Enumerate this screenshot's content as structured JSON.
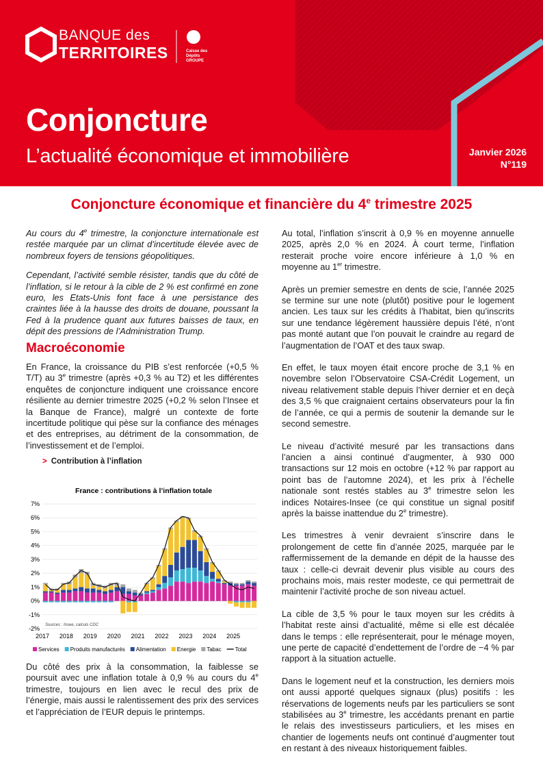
{
  "header": {
    "brand_line1": "BANQUE des",
    "brand_line2": "TERRITOIRES",
    "group": "Caisse des Dépôts GROUPE",
    "title": "Conjoncture",
    "subtitle": "L’actualité économique et immobilière",
    "date": "Janvier 2026",
    "issue": "N°119"
  },
  "heading": [
    "Conjoncture économique et financière du 4",
    "e",
    " trimestre 2025"
  ],
  "left": {
    "intro": [
      [
        "Au cours du 4",
        "e",
        " trimestre, la conjoncture internationale est restée marquée par un climat d’incertitude élevée avec de nombreux foyers de tensions géopolitiques."
      ],
      [
        "Cependant, l’activité semble résister, tandis que du côté de l’inflation, si le retour à la cible de 2 % est confirmé en zone euro, les Etats-Unis font face à une persistance des craintes liée à la hausse des droits de douane, poussant la Fed à la prudence quant aux futures baisses de taux, en dépit des pressions de l’Administration Trump."
      ]
    ],
    "section_title": "Macroéconomie",
    "paragraphs": [
      [
        "En France, la croissance du PIB s’est renforcée (+0,5 % T/T) au 3",
        "e",
        " trimestre (après +0,3 % au T2) et les différentes enquêtes de conjoncture indiquent une croissance encore résiliente au dernier trimestre 2025 (+0,2 % selon l’Insee et la Banque de France), malgré un contexte de forte incertitude politique qui pèse sur la confiance des ménages et des entreprises, au détriment de la consommation, de l’investissement et de l’emploi."
      ]
    ],
    "figure_marker": ">",
    "figure_caption": "Contribution à l’inflation",
    "closing": [
      [
        "Du côté des prix à la consommation, la faiblesse se poursuit avec une inflation totale à 0,9 % au cours du 4",
        "e",
        " trimestre, toujours en lien avec le recul des prix de l’énergie, mais aussi le ralentissement des prix des services et l’appréciation de l’EUR depuis le printemps."
      ]
    ]
  },
  "right": {
    "paragraphs": [
      [
        "Au total, l’inflation s’inscrit à 0,9 % en moyenne annuelle 2025, après 2,0 % en 2024. À court terme, l’inflation resterait proche voire encore inférieure à 1,0 % en moyenne au 1",
        "er",
        " trimestre."
      ],
      [
        "Après un premier semestre en dents de scie, l’année 2025 se termine sur une note (plutôt) positive pour le logement ancien. Les taux sur les crédits à l’habitat, bien qu’inscrits sur une tendance légèrement haussière depuis l’été, n’ont pas monté autant que l’on pouvait le craindre au regard de l’augmentation de l’OAT et des taux swap."
      ],
      [
        "En effet, le taux moyen était encore proche de 3,1 % en novembre selon l’Observatoire CSA-Crédit Logement, un niveau relativement stable depuis l’hiver dernier et en deçà des 3,5 % que craignaient certains observateurs pour la fin de l’année, ce qui a permis de soutenir la demande sur le second semestre."
      ],
      [
        "Le niveau d’activité mesuré par les transactions dans l’ancien a ainsi continué d’augmenter, à 930 000 transactions sur 12 mois en octobre (+12 % par rapport au point bas de l’automne 2024), et les prix à l’échelle nationale sont restés stables au 3",
        "e",
        " trimestre selon les indices Notaires-Insee (ce qui constitue un signal positif après la baisse inattendue du 2",
        "e",
        " trimestre)."
      ],
      [
        "Les trimestres à venir devraient s’inscrire dans le prolongement de cette fin d’année 2025, marquée par le raffermissement de la demande en dépit de la hausse des taux : celle-ci devrait devenir plus visible au cours des prochains mois, mais rester modeste, ce qui permettrait de maintenir l’activité proche de son niveau actuel."
      ],
      [
        "La cible de 3,5 % pour le taux moyen sur les crédits à l’habitat reste ainsi d’actualité, même si elle est décalée dans le temps : elle représenterait, pour le ménage moyen, une perte de capacité d’endettement de l’ordre de −4 % par rapport à la situation actuelle."
      ],
      [
        "Dans le logement neuf et la construction, les derniers mois ont aussi apporté quelques signaux (plus) positifs : les réservations de logements neufs par les particuliers se sont stabilisées au 3",
        "e",
        " trimestre, les accédants prenant en partie le relais des investisseurs particuliers, et les mises en chantier de logements neufs ont continué d’augmenter tout en restant à des niveaux historiquement faibles."
      ]
    ]
  },
  "chart_data": {
    "type": "bar",
    "stacked": true,
    "title": "France : contributions à l’inflation totale",
    "source": "Sources : Insee, calculs CDC",
    "categories": [
      "2017",
      null,
      null,
      null,
      "2018",
      null,
      null,
      null,
      "2019",
      null,
      null,
      null,
      "2020",
      null,
      null,
      null,
      "2021",
      null,
      null,
      null,
      "2022",
      null,
      null,
      null,
      "2023",
      null,
      null,
      null,
      "2024",
      null,
      null,
      null,
      "2025",
      null,
      null,
      null
    ],
    "ylim": [
      -2,
      7
    ],
    "yticks": [
      {
        "value": -2,
        "label": "-2%"
      },
      {
        "value": -1,
        "label": "-1%"
      },
      {
        "value": 0,
        "label": "0%"
      },
      {
        "value": 1,
        "label": "1%"
      },
      {
        "value": 2,
        "label": "2%"
      },
      {
        "value": 3,
        "label": "3%"
      },
      {
        "value": 4,
        "label": "4%"
      },
      {
        "value": 5,
        "label": "5%"
      },
      {
        "value": 6,
        "label": "6%"
      },
      {
        "value": 7,
        "label": "7%"
      }
    ],
    "grid": true,
    "series": [
      {
        "name": "Services",
        "color": "#d42a9e",
        "values": [
          0.6,
          0.6,
          0.5,
          0.6,
          0.6,
          0.7,
          0.7,
          0.6,
          0.6,
          0.6,
          0.5,
          0.6,
          0.7,
          0.5,
          0.5,
          0.4,
          0.4,
          0.5,
          0.6,
          0.8,
          0.9,
          1.1,
          1.4,
          1.4,
          1.3,
          1.4,
          1.4,
          1.3,
          1.4,
          1.3,
          1.2,
          1.1,
          1.1,
          1.1,
          1.2,
          1.1
        ]
      },
      {
        "name": "Produits manufacturés",
        "color": "#3fb7d6",
        "values": [
          -0.1,
          -0.1,
          -0.1,
          -0.1,
          -0.1,
          -0.1,
          -0.1,
          -0.1,
          -0.1,
          -0.1,
          -0.1,
          -0.1,
          0.0,
          0.0,
          -0.1,
          -0.1,
          0.0,
          0.1,
          0.1,
          0.2,
          0.4,
          0.6,
          0.8,
          0.9,
          1.1,
          1.0,
          0.8,
          0.5,
          0.2,
          0.1,
          0.0,
          0.0,
          -0.1,
          -0.1,
          -0.1,
          0.0
        ]
      },
      {
        "name": "Alimentation",
        "color": "#2c4b97",
        "values": [
          0.1,
          0.1,
          0.1,
          0.2,
          0.2,
          0.2,
          0.3,
          0.3,
          0.3,
          0.2,
          0.2,
          0.2,
          0.3,
          0.5,
          0.2,
          0.2,
          0.1,
          0.1,
          0.1,
          0.2,
          0.5,
          0.9,
          1.3,
          1.6,
          2.0,
          2.0,
          1.4,
          1.0,
          0.5,
          0.2,
          0.1,
          0.2,
          0.1,
          0.1,
          0.2,
          0.2
        ]
      },
      {
        "name": "Energie",
        "color": "#f2c230",
        "values": [
          0.5,
          0.1,
          0.2,
          0.4,
          0.4,
          0.8,
          1.0,
          1.0,
          0.2,
          0.2,
          0.2,
          0.3,
          0.1,
          -0.9,
          -0.7,
          -0.7,
          0.0,
          0.5,
          0.8,
          1.3,
          1.9,
          2.6,
          2.2,
          2.1,
          1.5,
          0.6,
          1.0,
          0.9,
          0.6,
          0.5,
          0.1,
          -0.2,
          -0.3,
          -0.4,
          -0.4,
          -0.5
        ]
      },
      {
        "name": "Tabac",
        "color": "#a6a6a6",
        "values": [
          0.1,
          0.1,
          0.1,
          0.1,
          0.2,
          0.2,
          0.3,
          0.2,
          0.2,
          0.2,
          0.2,
          0.2,
          0.2,
          0.2,
          0.2,
          0.2,
          0.1,
          0.1,
          0.1,
          0.1,
          0.1,
          0.1,
          0.1,
          0.1,
          0.1,
          0.1,
          0.1,
          0.1,
          0.1,
          0.1,
          0.1,
          0.1,
          0.1,
          0.1,
          0.1,
          0.1
        ]
      },
      {
        "name": "Total",
        "color": "#111111",
        "type": "line",
        "values": [
          1.2,
          0.8,
          0.8,
          1.2,
          1.3,
          1.8,
          2.2,
          2.0,
          1.2,
          1.1,
          1.0,
          1.2,
          1.3,
          0.3,
          0.1,
          0.0,
          0.6,
          1.3,
          1.7,
          2.6,
          3.8,
          5.3,
          5.8,
          6.1,
          6.0,
          5.1,
          4.7,
          3.8,
          2.8,
          2.2,
          1.5,
          1.2,
          0.9,
          0.8,
          1.0,
          0.9
        ]
      }
    ]
  }
}
